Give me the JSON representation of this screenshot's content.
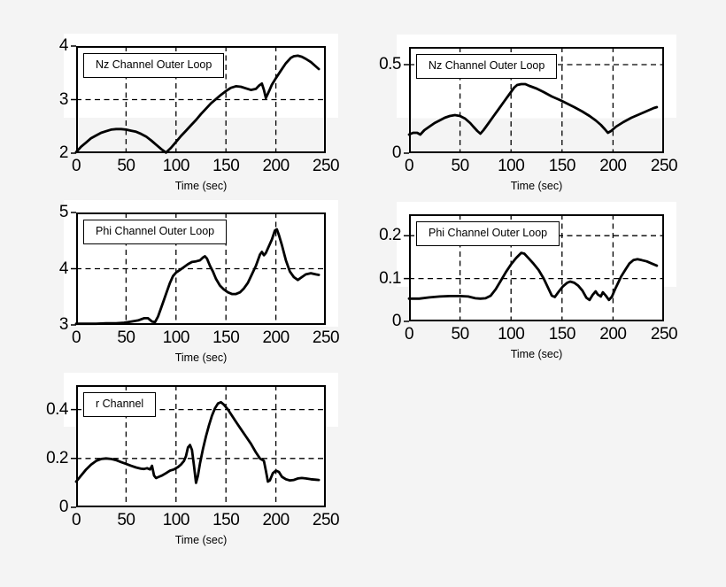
{
  "figure": {
    "background": "#f4f4f4",
    "axes_background": "#ffffff",
    "line_color": "#000000"
  },
  "chart_data": [
    {
      "type": "line",
      "legend": "Nz Channel Outer Loop",
      "xlabel": "Time (sec)",
      "xlim": [
        0,
        250
      ],
      "ylim": [
        2,
        4
      ],
      "xticks": [
        0,
        50,
        100,
        150,
        200,
        250
      ],
      "yticks": [
        2,
        3,
        4
      ],
      "grid_x": [
        50,
        100,
        150,
        200
      ],
      "grid_y": [
        3
      ],
      "x": [
        0,
        5,
        10,
        15,
        20,
        25,
        30,
        35,
        40,
        45,
        50,
        55,
        60,
        65,
        70,
        75,
        80,
        85,
        90,
        95,
        100,
        105,
        110,
        115,
        120,
        125,
        130,
        135,
        140,
        145,
        150,
        155,
        160,
        165,
        170,
        175,
        180,
        183,
        186,
        188,
        190,
        193,
        196,
        200,
        205,
        210,
        215,
        218,
        222,
        226,
        230,
        235,
        240,
        243
      ],
      "y": [
        2.02,
        2.12,
        2.2,
        2.28,
        2.33,
        2.38,
        2.41,
        2.44,
        2.45,
        2.45,
        2.44,
        2.42,
        2.4,
        2.36,
        2.31,
        2.24,
        2.16,
        2.08,
        2.01,
        2.1,
        2.21,
        2.32,
        2.42,
        2.52,
        2.62,
        2.73,
        2.83,
        2.93,
        3.01,
        3.09,
        3.16,
        3.22,
        3.25,
        3.24,
        3.21,
        3.18,
        3.2,
        3.26,
        3.3,
        3.18,
        3.03,
        3.15,
        3.28,
        3.4,
        3.54,
        3.68,
        3.78,
        3.81,
        3.82,
        3.8,
        3.76,
        3.7,
        3.62,
        3.57
      ]
    },
    {
      "type": "line",
      "legend": "Nz Channel Outer Loop",
      "xlabel": "Time (sec)",
      "xlim": [
        0,
        250
      ],
      "ylim": [
        0,
        0.6
      ],
      "xticks": [
        0,
        50,
        100,
        150,
        200,
        250
      ],
      "yticks": [
        0,
        0.5
      ],
      "grid_x": [
        50,
        100,
        150,
        200
      ],
      "grid_y": [
        0.5
      ],
      "x": [
        0,
        4,
        8,
        11,
        15,
        20,
        25,
        30,
        35,
        40,
        45,
        50,
        55,
        60,
        63,
        67,
        70,
        73,
        78,
        83,
        88,
        93,
        98,
        103,
        106,
        110,
        114,
        118,
        125,
        132,
        140,
        148,
        155,
        162,
        170,
        177,
        183,
        188,
        192,
        195,
        198,
        203,
        210,
        218,
        226,
        234,
        240,
        243
      ],
      "y": [
        0.105,
        0.115,
        0.115,
        0.105,
        0.13,
        0.15,
        0.17,
        0.185,
        0.2,
        0.21,
        0.215,
        0.21,
        0.195,
        0.17,
        0.15,
        0.125,
        0.11,
        0.13,
        0.17,
        0.21,
        0.25,
        0.29,
        0.33,
        0.37,
        0.385,
        0.39,
        0.39,
        0.38,
        0.365,
        0.345,
        0.32,
        0.3,
        0.28,
        0.26,
        0.235,
        0.21,
        0.185,
        0.16,
        0.135,
        0.115,
        0.125,
        0.15,
        0.175,
        0.2,
        0.22,
        0.24,
        0.255,
        0.26
      ]
    },
    {
      "type": "line",
      "legend": "Phi Channel Outer Loop",
      "xlabel": "Time (sec)",
      "xlim": [
        0,
        250
      ],
      "ylim": [
        3,
        5
      ],
      "xticks": [
        0,
        50,
        100,
        150,
        200,
        250
      ],
      "yticks": [
        3,
        4,
        5
      ],
      "grid_x": [
        50,
        100,
        150,
        200
      ],
      "grid_y": [
        4
      ],
      "x": [
        0,
        10,
        20,
        30,
        40,
        48,
        55,
        62,
        68,
        72,
        76,
        79,
        82,
        85,
        88,
        91,
        94,
        97,
        100,
        104,
        108,
        112,
        116,
        120,
        124,
        127,
        129,
        131,
        134,
        137,
        140,
        144,
        148,
        152,
        156,
        160,
        164,
        168,
        172,
        176,
        180,
        184,
        186,
        188,
        190,
        193,
        196,
        199,
        201,
        203,
        206,
        210,
        214,
        218,
        222,
        226,
        230,
        235,
        240,
        243
      ],
      "y": [
        3.02,
        3.02,
        3.02,
        3.03,
        3.03,
        3.04,
        3.06,
        3.08,
        3.12,
        3.12,
        3.06,
        3.05,
        3.15,
        3.3,
        3.45,
        3.6,
        3.75,
        3.87,
        3.93,
        3.98,
        4.03,
        4.08,
        4.12,
        4.13,
        4.15,
        4.2,
        4.22,
        4.18,
        4.05,
        3.95,
        3.82,
        3.7,
        3.63,
        3.58,
        3.55,
        3.55,
        3.58,
        3.65,
        3.75,
        3.9,
        4.05,
        4.25,
        4.3,
        4.24,
        4.28,
        4.4,
        4.52,
        4.68,
        4.7,
        4.6,
        4.42,
        4.15,
        3.95,
        3.85,
        3.8,
        3.85,
        3.9,
        3.92,
        3.9,
        3.89
      ]
    },
    {
      "type": "line",
      "legend": "Phi Channel Outer Loop",
      "xlabel": "Time (sec)",
      "xlim": [
        0,
        250
      ],
      "ylim": [
        0,
        0.25
      ],
      "xticks": [
        0,
        50,
        100,
        150,
        200,
        250
      ],
      "yticks": [
        0,
        0.1,
        0.2
      ],
      "grid_x": [
        50,
        100,
        150,
        200
      ],
      "grid_y": [
        0.1,
        0.2
      ],
      "x": [
        0,
        10,
        20,
        30,
        40,
        50,
        58,
        65,
        70,
        75,
        80,
        85,
        90,
        95,
        100,
        105,
        110,
        113,
        117,
        122,
        127,
        132,
        136,
        140,
        143,
        147,
        151,
        155,
        158,
        162,
        166,
        170,
        174,
        177,
        180,
        183,
        185,
        188,
        190,
        193,
        196,
        199,
        202,
        205,
        208,
        212,
        216,
        220,
        224,
        228,
        233,
        238,
        243
      ],
      "y": [
        0.053,
        0.053,
        0.056,
        0.058,
        0.059,
        0.059,
        0.058,
        0.054,
        0.053,
        0.054,
        0.06,
        0.075,
        0.095,
        0.115,
        0.133,
        0.148,
        0.16,
        0.158,
        0.148,
        0.135,
        0.12,
        0.1,
        0.08,
        0.06,
        0.057,
        0.07,
        0.082,
        0.09,
        0.093,
        0.09,
        0.083,
        0.072,
        0.055,
        0.05,
        0.062,
        0.07,
        0.063,
        0.058,
        0.068,
        0.06,
        0.05,
        0.058,
        0.075,
        0.09,
        0.105,
        0.12,
        0.135,
        0.143,
        0.145,
        0.143,
        0.14,
        0.135,
        0.13
      ]
    },
    {
      "type": "line",
      "legend": "r Channel",
      "xlabel": "Time (sec)",
      "xlim": [
        0,
        250
      ],
      "ylim": [
        0,
        0.5
      ],
      "xticks": [
        0,
        50,
        100,
        150,
        200,
        250
      ],
      "yticks": [
        0,
        0.2,
        0.4
      ],
      "grid_x": [
        50,
        100,
        150,
        200
      ],
      "grid_y": [
        0.2,
        0.4
      ],
      "x": [
        0,
        5,
        10,
        15,
        20,
        25,
        30,
        35,
        40,
        45,
        50,
        55,
        60,
        65,
        68,
        71,
        74,
        76,
        78,
        80,
        83,
        86,
        90,
        94,
        98,
        102,
        105,
        108,
        110,
        112,
        114,
        116,
        118,
        120,
        122,
        124,
        127,
        130,
        133,
        136,
        139,
        142,
        145,
        148,
        152,
        156,
        160,
        165,
        170,
        175,
        180,
        184,
        188,
        190,
        192,
        194,
        197,
        200,
        203,
        206,
        210,
        214,
        218,
        222,
        226,
        230,
        235,
        240,
        243
      ],
      "y": [
        0.105,
        0.13,
        0.155,
        0.175,
        0.19,
        0.198,
        0.2,
        0.198,
        0.193,
        0.185,
        0.178,
        0.17,
        0.163,
        0.158,
        0.157,
        0.16,
        0.155,
        0.17,
        0.13,
        0.12,
        0.125,
        0.13,
        0.14,
        0.15,
        0.155,
        0.165,
        0.175,
        0.19,
        0.21,
        0.245,
        0.255,
        0.235,
        0.17,
        0.1,
        0.13,
        0.18,
        0.24,
        0.29,
        0.335,
        0.375,
        0.405,
        0.425,
        0.43,
        0.42,
        0.4,
        0.375,
        0.35,
        0.32,
        0.29,
        0.26,
        0.225,
        0.2,
        0.19,
        0.15,
        0.105,
        0.11,
        0.14,
        0.15,
        0.145,
        0.125,
        0.115,
        0.11,
        0.112,
        0.118,
        0.12,
        0.118,
        0.115,
        0.113,
        0.112
      ]
    }
  ]
}
